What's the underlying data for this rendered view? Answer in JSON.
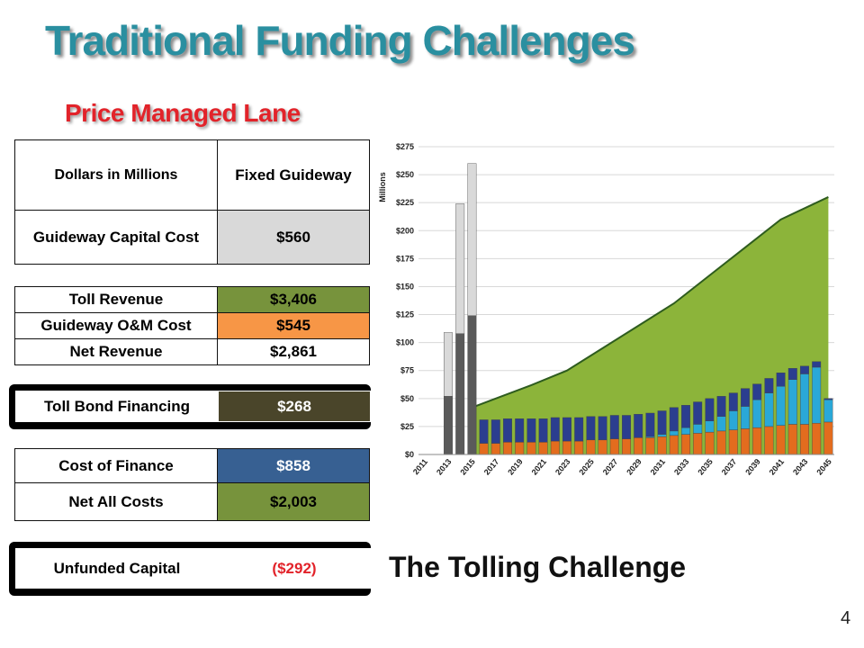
{
  "slide": {
    "title": "Traditional Funding Challenges",
    "subtitle": "Price Managed Lane",
    "chart_caption": "The Tolling Challenge",
    "page_number": "4"
  },
  "table": {
    "header": {
      "label": "Dollars in Millions",
      "value": "Fixed Guideway"
    },
    "capital": {
      "label": "Guideway Capital Cost",
      "value": "$560",
      "color": "#d9d9d9"
    },
    "toll_revenue": {
      "label": "Toll Revenue",
      "value": "$3,406",
      "color": "#77933c"
    },
    "om_cost": {
      "label": "Guideway O&M Cost",
      "value": "$545",
      "color": "#f79646"
    },
    "net_revenue": {
      "label": "Net Revenue",
      "value": "$2,861",
      "color": "#ffffff"
    },
    "bond": {
      "label": "Toll Bond Financing",
      "value": "$268",
      "color": "#4a452a"
    },
    "cost_finance": {
      "label": "Cost of Finance",
      "value": "$858",
      "color": "#376092"
    },
    "net_all": {
      "label": "Net All Costs",
      "value": "$2,003",
      "color": "#77933c"
    },
    "unfunded": {
      "label": "Unfunded Capital",
      "value": "($292)",
      "value_color": "#e2232a"
    }
  },
  "chart_data": {
    "type": "bar",
    "ylabel": "Millions",
    "ylim": [
      0,
      275
    ],
    "yticks": [
      "$0",
      "$25",
      "$50",
      "$75",
      "$100",
      "$125",
      "$150",
      "$175",
      "$200",
      "$225",
      "$250",
      "$275"
    ],
    "x_tick_labels": [
      "2011",
      "2013",
      "2015",
      "2017",
      "2019",
      "2021",
      "2023",
      "2025",
      "2027",
      "2029",
      "2031",
      "2033",
      "2035",
      "2037",
      "2039",
      "2041",
      "2043",
      "2045"
    ],
    "years": [
      2011,
      2012,
      2013,
      2014,
      2015,
      2016,
      2017,
      2018,
      2019,
      2020,
      2021,
      2022,
      2023,
      2024,
      2025,
      2026,
      2027,
      2028,
      2029,
      2030,
      2031,
      2032,
      2033,
      2034,
      2035,
      2036,
      2037,
      2038,
      2039,
      2040,
      2041,
      2042,
      2043,
      2044,
      2045
    ],
    "area": {
      "years": [
        2015,
        2017,
        2020,
        2023,
        2026,
        2029,
        2032,
        2035,
        2038,
        2041,
        2045
      ],
      "values": [
        42,
        50,
        62,
        75,
        95,
        115,
        135,
        160,
        185,
        210,
        230
      ],
      "color": "#8cb43a",
      "line_color": "#2e5c1e"
    },
    "series": [
      {
        "color": "#5a5a5a",
        "values": [
          0,
          0,
          52,
          108,
          124,
          0,
          0,
          0,
          0,
          0,
          0,
          0,
          0,
          0,
          0,
          0,
          0,
          0,
          0,
          0,
          0,
          0,
          0,
          0,
          0,
          0,
          0,
          0,
          0,
          0,
          0,
          0,
          0,
          0,
          0
        ]
      },
      {
        "color": "#d9d9d9",
        "values": [
          0,
          0,
          57,
          116,
          136,
          0,
          0,
          0,
          0,
          0,
          0,
          0,
          0,
          0,
          0,
          0,
          0,
          0,
          0,
          0,
          0,
          0,
          0,
          0,
          0,
          0,
          0,
          0,
          0,
          0,
          0,
          0,
          0,
          0,
          0
        ]
      },
      {
        "color": "#e36c1e",
        "values": [
          0,
          0,
          0,
          0,
          0,
          10,
          10,
          11,
          11,
          11,
          11,
          12,
          12,
          12,
          13,
          13,
          14,
          14,
          15,
          15,
          16,
          17,
          18,
          19,
          20,
          21,
          22,
          23,
          24,
          25,
          26,
          27,
          27,
          28,
          29
        ]
      },
      {
        "color": "#2aa8d8",
        "values": [
          0,
          0,
          0,
          0,
          0,
          0,
          0,
          0,
          0,
          0,
          0,
          0,
          0,
          0,
          0,
          0,
          0,
          0,
          0,
          1,
          2,
          4,
          6,
          8,
          10,
          13,
          17,
          20,
          25,
          30,
          35,
          40,
          45,
          50,
          20
        ]
      },
      {
        "color": "#2b3e8f",
        "values": [
          0,
          0,
          0,
          0,
          0,
          21,
          21,
          21,
          21,
          21,
          21,
          21,
          21,
          21,
          21,
          21,
          21,
          21,
          21,
          21,
          21,
          21,
          20,
          20,
          20,
          18,
          16,
          16,
          14,
          13,
          12,
          10,
          7,
          5,
          1
        ]
      }
    ]
  }
}
